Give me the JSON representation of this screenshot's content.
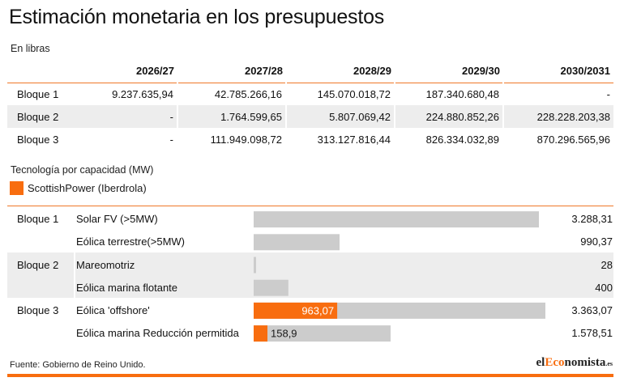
{
  "title": "Estimación monetaria en los presupuestos",
  "unit_label": "En libras",
  "budget_table": {
    "columns": [
      "2026/27",
      "2027/28",
      "2028/29",
      "2029/30",
      "2030/2031"
    ],
    "rows": [
      {
        "label": "Bloque 1",
        "cells": [
          "9.237.635,94",
          "42.785.266,16",
          "145.070.018,72",
          "187.340.680,48",
          "-"
        ]
      },
      {
        "label": "Bloque 2",
        "cells": [
          "-",
          "1.764.599,65",
          "5.807.069,42",
          "224.880.852,26",
          "228.228.203,38"
        ]
      },
      {
        "label": "Bloque 3",
        "cells": [
          "-",
          "111.949.098,72",
          "313.127.816,44",
          "826.334.032,89",
          "870.296.565,96"
        ]
      }
    ]
  },
  "chart_subtitle": "Tecnología por capacidad (MW)",
  "legend": {
    "label": "ScottishPower (Iberdrola)",
    "color": "#f86d0f"
  },
  "chart_data": {
    "type": "bar",
    "orientation": "horizontal",
    "xlim": [
      0,
      3363.07
    ],
    "base_color": "#cccccc",
    "highlight_color": "#f86d0f",
    "rows": [
      {
        "block": "Bloque 1",
        "technology": "Solar FV (>5MW)",
        "value": 3288.31,
        "value_label": "3.288,31",
        "highlight": null,
        "highlight_label": ""
      },
      {
        "block": "",
        "technology": "Eólica terrestre(>5MW)",
        "value": 990.37,
        "value_label": "990,37",
        "highlight": null,
        "highlight_label": ""
      },
      {
        "block": "Bloque 2",
        "technology": "Mareomotriz",
        "value": 28,
        "value_label": "28",
        "highlight": null,
        "highlight_label": ""
      },
      {
        "block": "",
        "technology": "Eólica marina flotante",
        "value": 400,
        "value_label": "400",
        "highlight": null,
        "highlight_label": ""
      },
      {
        "block": "Bloque 3",
        "technology": "Eólica 'offshore'",
        "value": 3363.07,
        "value_label": "3.363,07",
        "highlight": 963.07,
        "highlight_label": "963,07"
      },
      {
        "block": "",
        "technology": "Eólica marina Reducción permitida",
        "value": 1578.51,
        "value_label": "1.578,51",
        "highlight": 158.9,
        "highlight_label": "158,9"
      }
    ]
  },
  "footer": {
    "source": "Fuente: Gobierno de Reino Unido.",
    "brand_prefix": "el",
    "brand_highlight": "Eco",
    "brand_rest": "nomista",
    "brand_suffix": ".es"
  }
}
